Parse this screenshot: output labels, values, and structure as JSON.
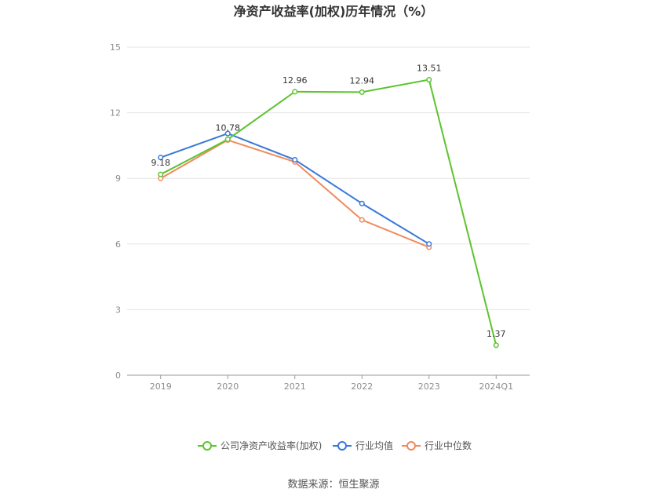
{
  "chart_data": {
    "type": "line",
    "title": "净资产收益率(加权)历年情况（%）",
    "categories": [
      "2019",
      "2020",
      "2021",
      "2022",
      "2023",
      "2024Q1"
    ],
    "ylim": [
      0,
      15
    ],
    "yticks": [
      0,
      3,
      6,
      9,
      12,
      15
    ],
    "grid": true,
    "legend_position": "bottom",
    "series": [
      {
        "name": "公司净资产收益率(加权)",
        "color": "#5cc42f",
        "values": [
          9.18,
          10.78,
          12.96,
          12.94,
          13.51,
          1.37
        ],
        "labels": [
          "9.18",
          "10.78",
          "12.96",
          "12.94",
          "13.51",
          "1.37"
        ]
      },
      {
        "name": "行业均值",
        "color": "#3a78d8",
        "values": [
          9.95,
          11.05,
          9.85,
          7.85,
          6.0,
          null
        ]
      },
      {
        "name": "行业中位数",
        "color": "#f08a5d",
        "values": [
          9.0,
          10.75,
          9.75,
          7.1,
          5.85,
          null
        ]
      }
    ],
    "source": "数据来源：恒生聚源"
  }
}
